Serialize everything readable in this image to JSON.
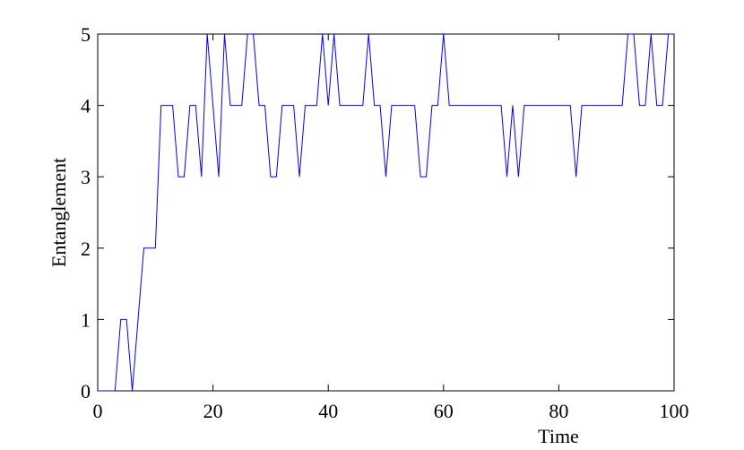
{
  "chart_data": {
    "type": "line",
    "xlabel": "Time",
    "ylabel": "Entanglement",
    "xlim": [
      0,
      100
    ],
    "ylim": [
      0,
      5
    ],
    "xticks": [
      0,
      20,
      40,
      60,
      80,
      100
    ],
    "yticks": [
      0,
      1,
      2,
      3,
      4,
      5
    ],
    "grid": false,
    "line_color": "#0000ff",
    "series": [
      {
        "x": [
          0,
          1,
          2,
          3,
          4,
          5,
          6,
          7,
          8,
          9,
          10,
          11,
          12,
          13,
          14,
          15,
          16,
          17,
          18,
          19,
          20,
          21,
          22,
          23,
          24,
          25,
          26,
          27,
          28,
          29,
          30,
          31,
          32,
          33,
          34,
          35,
          36,
          37,
          38,
          39,
          40,
          41,
          42,
          43,
          44,
          45,
          46,
          47,
          48,
          49,
          50,
          51,
          52,
          53,
          54,
          55,
          56,
          57,
          58,
          59,
          60,
          61,
          62,
          63,
          64,
          65,
          66,
          67,
          68,
          69,
          70,
          71,
          72,
          73,
          74,
          75,
          76,
          77,
          78,
          79,
          80,
          81,
          82,
          83,
          84,
          85,
          86,
          87,
          88,
          89,
          90,
          91,
          92,
          93,
          94,
          95,
          96,
          97,
          98,
          99,
          100
        ],
        "y": [
          0,
          0,
          0,
          0,
          1,
          1,
          0,
          1,
          2,
          2,
          2,
          4,
          4,
          4,
          3,
          3,
          4,
          4,
          3,
          5,
          4,
          3,
          5,
          4,
          4,
          4,
          5,
          5,
          4,
          4,
          3,
          3,
          4,
          4,
          4,
          3,
          4,
          4,
          4,
          5,
          4,
          5,
          4,
          4,
          4,
          4,
          4,
          5,
          4,
          4,
          3,
          4,
          4,
          4,
          4,
          4,
          3,
          3,
          4,
          4,
          5,
          4,
          4,
          4,
          4,
          4,
          4,
          4,
          4,
          4,
          4,
          3,
          4,
          3,
          4,
          4,
          4,
          4,
          4,
          4,
          4,
          4,
          4,
          3,
          4,
          4,
          4,
          4,
          4,
          4,
          4,
          4,
          5,
          5,
          4,
          4,
          5,
          4,
          4,
          5,
          5
        ]
      }
    ]
  }
}
